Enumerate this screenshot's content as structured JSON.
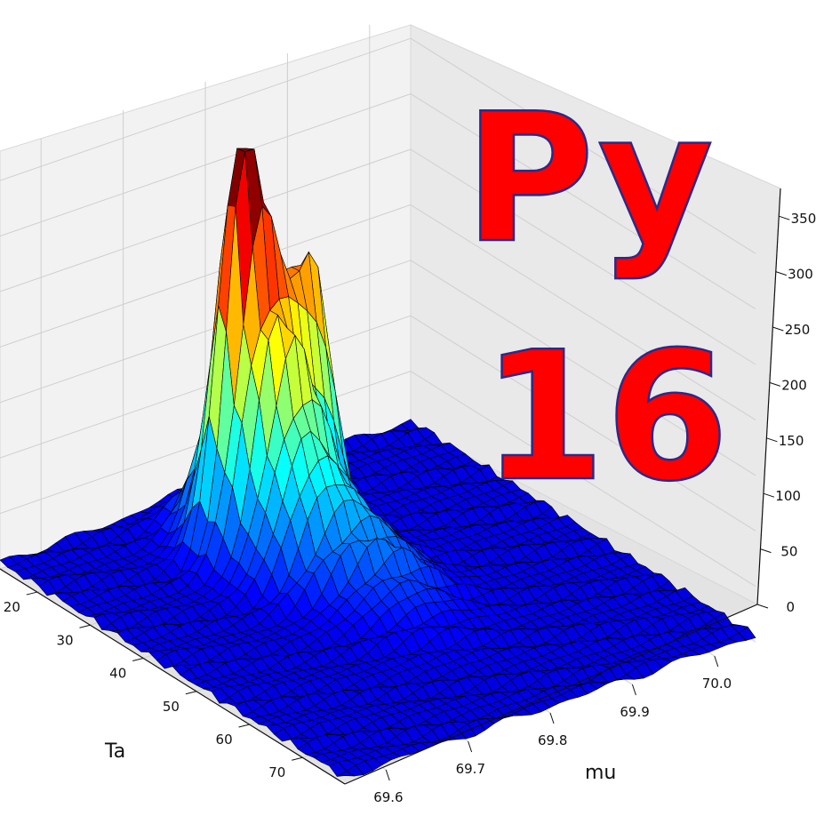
{
  "overlay": {
    "line1": "Py",
    "line2": "16",
    "color": "#ff0000"
  },
  "chart_data": {
    "type": "surface3d",
    "title": "",
    "xlabel": "Ta",
    "ylabel": "mu",
    "zlabel": "",
    "x_ticks": [
      "20",
      "30",
      "40",
      "50",
      "60",
      "70"
    ],
    "y_ticks": [
      "69.6",
      "69.7",
      "69.8",
      "69.9",
      "70.0"
    ],
    "z_ticks": [
      "0",
      "50",
      "100",
      "150",
      "200",
      "250",
      "300",
      "350"
    ],
    "xlim": [
      13,
      78
    ],
    "ylim": [
      69.55,
      70.05
    ],
    "zlim": [
      0,
      375
    ],
    "colormap": "jet",
    "grid": true,
    "peaks": [
      {
        "x": 28,
        "y": 69.74,
        "z": 330
      },
      {
        "x": 30,
        "y": 69.82,
        "z": 365
      }
    ]
  }
}
